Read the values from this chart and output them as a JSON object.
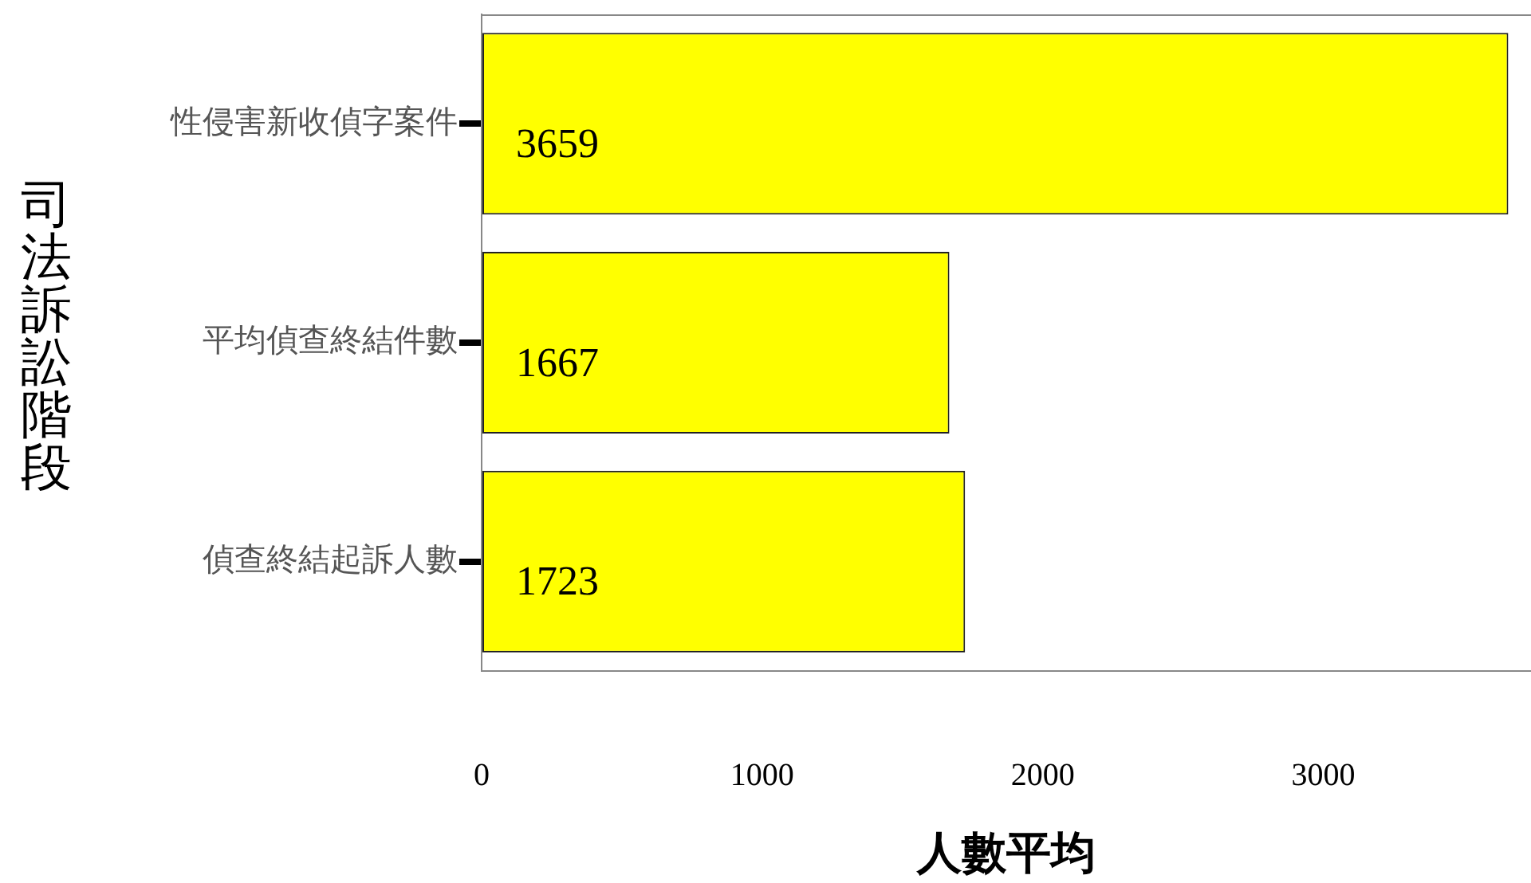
{
  "chart_data": {
    "type": "bar",
    "orientation": "horizontal",
    "categories": [
      "性侵害新收偵字案件",
      "平均偵查終結件數",
      "偵查終結起訴人數"
    ],
    "values": [
      3659,
      1667,
      1723
    ],
    "color": "#ffff00",
    "xlabel": "人數平均",
    "ylabel": "司法訴訟階段",
    "xlim": [
      0,
      3740
    ],
    "xticks": [
      0,
      1000,
      2000,
      3000
    ],
    "data_labels": true,
    "grid": false,
    "legend": false
  }
}
